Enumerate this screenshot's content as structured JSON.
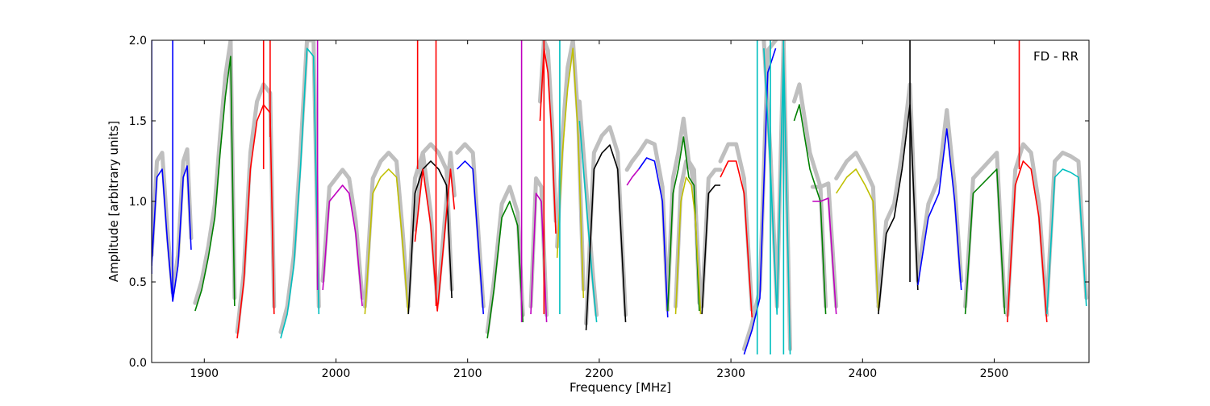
{
  "chart_data": {
    "type": "line",
    "title": "",
    "xlabel": "Frequency [MHz]",
    "ylabel": "Amplitude [arbitrary units]",
    "annotation": "FD - RR",
    "xlim": [
      1860,
      2572
    ],
    "ylim": [
      0.0,
      2.0
    ],
    "x_ticks": [
      1900,
      2000,
      2100,
      2200,
      2300,
      2400,
      2500
    ],
    "y_ticks": [
      0.0,
      0.5,
      1.0,
      1.5,
      2.0
    ],
    "x_tick_labels": [
      "1900",
      "2000",
      "2100",
      "2200",
      "2300",
      "2400",
      "2500"
    ],
    "y_tick_labels": [
      "0.0",
      "0.5",
      "1.0",
      "1.5",
      "2.0"
    ],
    "grid": false,
    "background_color": "#bfbfbf",
    "series": [
      {
        "color": "#0000ff",
        "x": [
          1860,
          1864,
          1868,
          1872,
          1876,
          1880,
          1884,
          1887,
          1890
        ],
        "y": [
          0.6,
          1.15,
          1.2,
          0.75,
          0.38,
          0.6,
          1.15,
          1.22,
          0.7
        ]
      },
      {
        "color": "#008000",
        "x": [
          1893,
          1898,
          1903,
          1908,
          1912,
          1916,
          1920,
          1923
        ],
        "y": [
          0.32,
          0.45,
          0.65,
          0.9,
          1.3,
          1.65,
          1.9,
          0.35
        ]
      },
      {
        "color": "#ff0000",
        "x": [
          1925,
          1930,
          1935,
          1940,
          1945,
          1950,
          1953
        ],
        "y": [
          0.15,
          0.5,
          1.2,
          1.5,
          1.6,
          1.55,
          0.3
        ]
      },
      {
        "color": "#00bfbf",
        "x": [
          1958,
          1963,
          1968,
          1973,
          1978,
          1983,
          1987
        ],
        "y": [
          0.15,
          0.3,
          0.6,
          1.2,
          1.95,
          1.9,
          0.3
        ]
      },
      {
        "color": "#bf00bf",
        "x": [
          1990,
          1995,
          2000,
          2005,
          2010,
          2015,
          2020
        ],
        "y": [
          0.45,
          1.0,
          1.05,
          1.1,
          1.05,
          0.8,
          0.35
        ]
      },
      {
        "color": "#bfbf00",
        "x": [
          2022,
          2028,
          2034,
          2040,
          2046,
          2050,
          2055
        ],
        "y": [
          0.3,
          1.05,
          1.15,
          1.2,
          1.15,
          0.8,
          0.3
        ]
      },
      {
        "color": "#000000",
        "x": [
          2055,
          2060,
          2066,
          2072,
          2078,
          2084,
          2088
        ],
        "y": [
          0.3,
          1.05,
          1.2,
          1.25,
          1.2,
          1.1,
          0.4
        ]
      },
      {
        "color": "#ff0000",
        "x": [
          2060,
          2066,
          2072,
          2077,
          2082,
          2087,
          2090
        ],
        "y": [
          0.75,
          1.2,
          0.85,
          0.32,
          0.75,
          1.2,
          0.95
        ]
      },
      {
        "color": "#0000ff",
        "x": [
          2092,
          2098,
          2104,
          2108,
          2112
        ],
        "y": [
          1.2,
          1.25,
          1.2,
          0.75,
          0.3
        ]
      },
      {
        "color": "#008000",
        "x": [
          2115,
          2120,
          2126,
          2132,
          2138,
          2142
        ],
        "y": [
          0.15,
          0.45,
          0.9,
          1.0,
          0.85,
          0.25
        ]
      },
      {
        "color": "#bf00bf",
        "x": [
          2148,
          2152,
          2156,
          2160
        ],
        "y": [
          0.3,
          1.05,
          1.0,
          0.25
        ]
      },
      {
        "color": "#ff0000",
        "x": [
          2155,
          2158,
          2161,
          2164,
          2167
        ],
        "y": [
          1.5,
          1.95,
          1.8,
          1.4,
          0.8
        ]
      },
      {
        "color": "#bfbf00",
        "x": [
          2168,
          2172,
          2176,
          2180,
          2184,
          2188
        ],
        "y": [
          0.65,
          1.3,
          1.7,
          1.95,
          1.4,
          0.4
        ]
      },
      {
        "color": "#00bfbf",
        "x": [
          2185,
          2190,
          2195,
          2198
        ],
        "y": [
          1.5,
          1.0,
          0.5,
          0.25
        ]
      },
      {
        "color": "#000000",
        "x": [
          2190,
          2196,
          2202,
          2208,
          2214,
          2220
        ],
        "y": [
          0.2,
          1.2,
          1.3,
          1.35,
          1.2,
          0.25
        ]
      },
      {
        "color": "#bf00bf",
        "x": [
          2221,
          2225,
          2230
        ],
        "y": [
          1.1,
          1.15,
          1.2
        ]
      },
      {
        "color": "#0000ff",
        "x": [
          2230,
          2236,
          2242,
          2248,
          2252
        ],
        "y": [
          1.2,
          1.27,
          1.25,
          1.0,
          0.28
        ]
      },
      {
        "color": "#008000",
        "x": [
          2252,
          2256,
          2260,
          2264,
          2268,
          2272,
          2276
        ],
        "y": [
          0.32,
          1.05,
          1.2,
          1.4,
          1.15,
          1.1,
          0.32
        ]
      },
      {
        "color": "#bfbf00",
        "x": [
          2258,
          2262,
          2266,
          2270,
          2273,
          2277
        ],
        "y": [
          0.3,
          1.0,
          1.15,
          1.1,
          0.9,
          0.3
        ]
      },
      {
        "color": "#000000",
        "x": [
          2278,
          2283,
          2288,
          2292
        ],
        "y": [
          0.3,
          1.05,
          1.1,
          1.1
        ]
      },
      {
        "color": "#ff0000",
        "x": [
          2292,
          2298,
          2304,
          2310,
          2316
        ],
        "y": [
          1.15,
          1.25,
          1.25,
          1.05,
          0.28
        ]
      },
      {
        "color": "#0000ff",
        "x": [
          2310,
          2316,
          2322,
          2328,
          2334
        ],
        "y": [
          0.05,
          0.2,
          0.4,
          1.8,
          1.95
        ]
      },
      {
        "color": "#00bfbf",
        "x": [
          2325,
          2330,
          2335,
          2340,
          2345
        ],
        "y": [
          1.95,
          1.2,
          0.3,
          1.95,
          0.05
        ]
      },
      {
        "color": "#008000",
        "x": [
          2348,
          2352,
          2356,
          2360,
          2364,
          2368,
          2372
        ],
        "y": [
          1.5,
          1.6,
          1.4,
          1.2,
          1.1,
          1.0,
          0.3
        ]
      },
      {
        "color": "#bf00bf",
        "x": [
          2362,
          2368,
          2374,
          2380
        ],
        "y": [
          1.0,
          1.0,
          1.02,
          0.3
        ]
      },
      {
        "color": "#bfbf00",
        "x": [
          2380,
          2388,
          2395,
          2402,
          2408,
          2412
        ],
        "y": [
          1.05,
          1.15,
          1.2,
          1.1,
          1.0,
          0.32
        ]
      },
      {
        "color": "#000000",
        "x": [
          2412,
          2418,
          2424,
          2430,
          2436,
          2442
        ],
        "y": [
          0.3,
          0.8,
          0.9,
          1.2,
          1.6,
          0.45
        ]
      },
      {
        "color": "#0000ff",
        "x": [
          2442,
          2450,
          2458,
          2464,
          2470,
          2475
        ],
        "y": [
          0.48,
          0.9,
          1.05,
          1.45,
          1.0,
          0.45
        ]
      },
      {
        "color": "#008000",
        "x": [
          2478,
          2484,
          2490,
          2496,
          2502,
          2508
        ],
        "y": [
          0.3,
          1.05,
          1.1,
          1.15,
          1.2,
          0.3
        ]
      },
      {
        "color": "#ff0000",
        "x": [
          2510,
          2516,
          2522,
          2528,
          2534,
          2540
        ],
        "y": [
          0.25,
          1.1,
          1.25,
          1.2,
          0.9,
          0.25
        ]
      },
      {
        "color": "#00bfbf",
        "x": [
          2540,
          2546,
          2552,
          2558,
          2564,
          2570
        ],
        "y": [
          0.3,
          1.15,
          1.2,
          1.18,
          1.15,
          0.35
        ]
      }
    ],
    "spikes": [
      {
        "color": "#0000ff",
        "x": 1860,
        "y_from": 0.55,
        "y_to": 2.0
      },
      {
        "color": "#0000ff",
        "x": 1876,
        "y_from": 0.4,
        "y_to": 2.0
      },
      {
        "color": "#ff0000",
        "x": 1945,
        "y_from": 1.2,
        "y_to": 2.0
      },
      {
        "color": "#ff0000",
        "x": 1950,
        "y_from": 1.4,
        "y_to": 2.0
      },
      {
        "color": "#bf00bf",
        "x": 1986,
        "y_from": 0.45,
        "y_to": 2.0
      },
      {
        "color": "#ff0000",
        "x": 2062,
        "y_from": 1.2,
        "y_to": 2.0
      },
      {
        "color": "#ff0000",
        "x": 2076,
        "y_from": 0.35,
        "y_to": 2.0
      },
      {
        "color": "#00bfbf",
        "x": 2170,
        "y_from": 0.3,
        "y_to": 2.0
      },
      {
        "color": "#bf00bf",
        "x": 2141,
        "y_from": 0.25,
        "y_to": 2.0
      },
      {
        "color": "#ff0000",
        "x": 2158,
        "y_from": 0.3,
        "y_to": 2.0
      },
      {
        "color": "#00bfbf",
        "x": 2320,
        "y_from": 0.05,
        "y_to": 2.0
      },
      {
        "color": "#00bfbf",
        "x": 2330,
        "y_from": 0.05,
        "y_to": 2.0
      },
      {
        "color": "#00bfbf",
        "x": 2340,
        "y_from": 0.05,
        "y_to": 2.0
      },
      {
        "color": "#000000",
        "x": 2436,
        "y_from": 0.5,
        "y_to": 2.0
      },
      {
        "color": "#ff0000",
        "x": 2519,
        "y_from": 1.2,
        "y_to": 2.0
      }
    ]
  }
}
